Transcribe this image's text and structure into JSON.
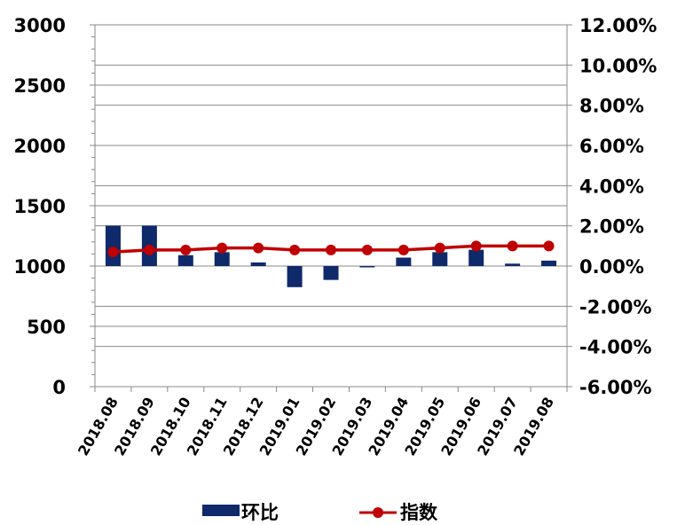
{
  "chart_data": {
    "type": "bar+line",
    "categories": [
      "2018.08",
      "2018.09",
      "2018.10",
      "2018.11",
      "2018.12",
      "2019.01",
      "2019.02",
      "2019.03",
      "2019.04",
      "2019.05",
      "2019.06",
      "2019.07",
      "2019.08"
    ],
    "series": [
      {
        "name": "环比",
        "type": "bar",
        "axis": "left",
        "color": "#0f2a6b",
        "values": [
          1335,
          1335,
          1090,
          1115,
          1030,
          825,
          885,
          990,
          1070,
          1115,
          1135,
          1020,
          1045
        ]
      },
      {
        "name": "指数",
        "type": "line",
        "axis": "right",
        "color": "#c00000",
        "values": [
          0.7,
          0.8,
          0.8,
          0.9,
          0.9,
          0.8,
          0.8,
          0.8,
          0.8,
          0.9,
          1.0,
          1.0,
          1.0
        ]
      }
    ],
    "left_axis": {
      "ylim": [
        0,
        3000
      ],
      "ticks": [
        0,
        500,
        1000,
        1500,
        2000,
        2500,
        3000
      ],
      "tick_labels": [
        "0",
        "500",
        "1000",
        "1500",
        "2000",
        "2500",
        "3000"
      ],
      "minor_ticks": [
        100,
        200,
        300,
        400,
        600,
        700,
        800,
        900,
        1100,
        1200,
        1300,
        1400,
        1600,
        1700,
        1800,
        1900,
        2100,
        2200,
        2300,
        2400,
        2600,
        2700,
        2800,
        2900
      ]
    },
    "right_axis": {
      "ylim": [
        -6,
        12
      ],
      "ticks": [
        -6,
        -4,
        -2,
        0,
        2,
        4,
        6,
        8,
        10,
        12
      ],
      "tick_labels": [
        "-6.00%",
        "-4.00%",
        "-2.00%",
        "0.00%",
        "2.00%",
        "4.00%",
        "6.00%",
        "8.00%",
        "10.00%",
        "12.00%"
      ]
    },
    "bar_baseline": 1000,
    "grid": true,
    "legend_position": "bottom"
  }
}
